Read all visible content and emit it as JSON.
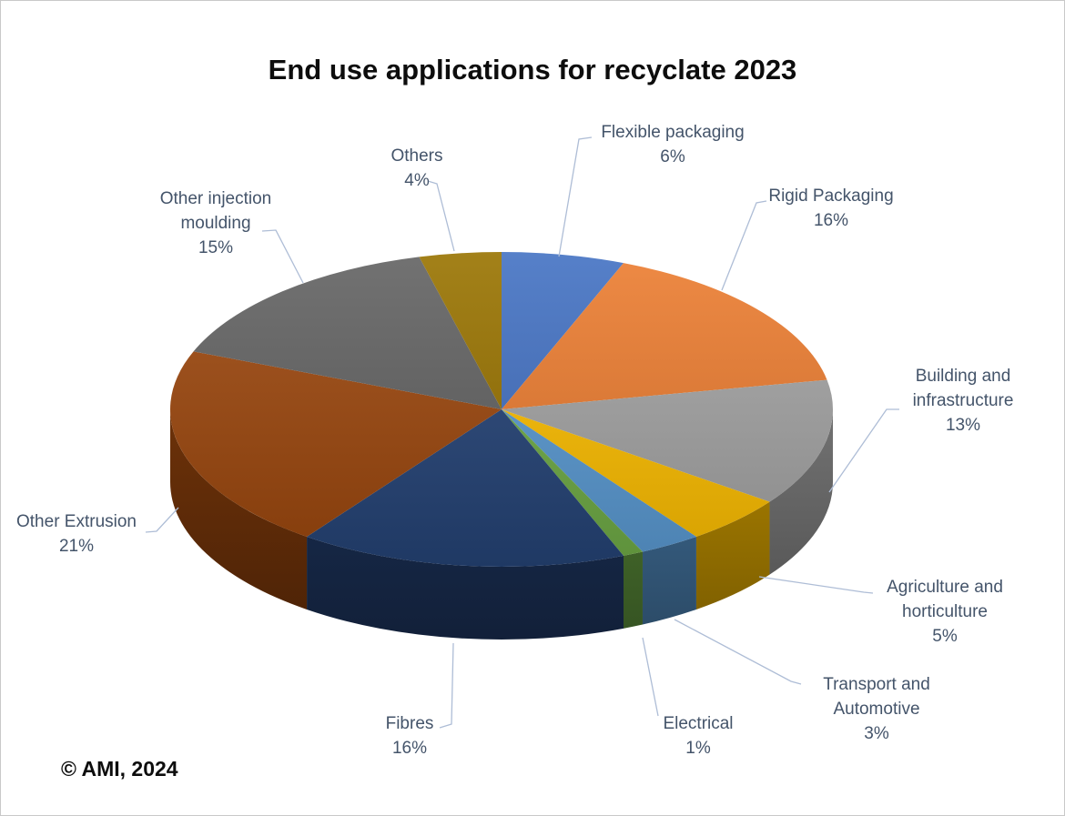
{
  "title": "End use applications for recyclate 2023",
  "copyright": "© AMI, 2024",
  "colors": {
    "background": "#FFFFFF",
    "frame_border": "#C9C9C9",
    "title_text": "#0D0D0D",
    "label_text": "#44546A",
    "leader_line": "#AEBDD6",
    "copyright_text": "#0D0D0D"
  },
  "chart_data": {
    "type": "pie",
    "style": "3d",
    "title": "End use applications for recyclate 2023",
    "start_angle_deg": 0,
    "direction": "clockwise",
    "total_pct": 100,
    "slices": [
      {
        "label": "Flexible packaging",
        "value_pct": 6,
        "display": "6%",
        "color": "#4472C4"
      },
      {
        "label": "Rigid Packaging",
        "value_pct": 16,
        "display": "16%",
        "color": "#ED7D31"
      },
      {
        "label": "Building and infrastructure",
        "value_pct": 13,
        "display": "13%",
        "color": "#A5A5A5"
      },
      {
        "label": "Agriculture and horticulture",
        "value_pct": 5,
        "display": "5%",
        "color": "#FFC000"
      },
      {
        "label": "Transport and Automotive",
        "value_pct": 3,
        "display": "3%",
        "color": "#5B9BD5"
      },
      {
        "label": "Electrical",
        "value_pct": 1,
        "display": "1%",
        "color": "#70AD47"
      },
      {
        "label": "Fibres",
        "value_pct": 16,
        "display": "16%",
        "color": "#264478"
      },
      {
        "label": "Other Extrusion",
        "value_pct": 21,
        "display": "21%",
        "color": "#9E480E"
      },
      {
        "label": "Other injection moulding",
        "value_pct": 15,
        "display": "15%",
        "color": "#636363"
      },
      {
        "label": "Others",
        "value_pct": 4,
        "display": "4%",
        "color": "#997300"
      }
    ]
  }
}
